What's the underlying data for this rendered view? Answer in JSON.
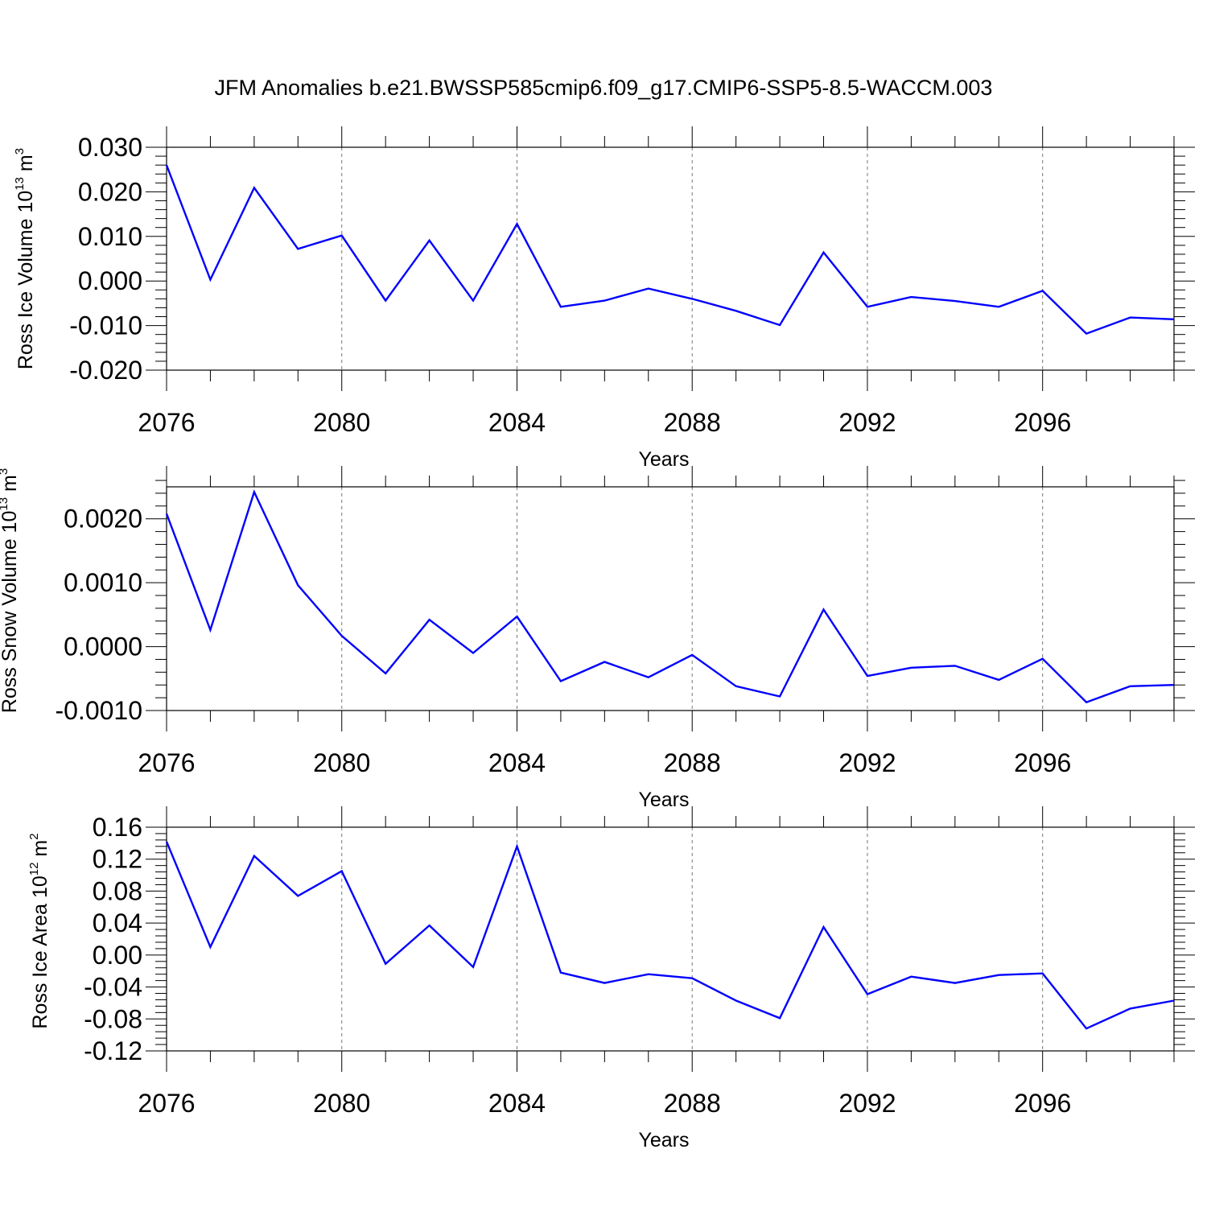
{
  "title": "JFM Anomalies b.e21.BWSSP585cmip6.f09_g17.CMIP6-SSP5-8.5-WACCM.003",
  "line_color": "#0000ff",
  "chart_data": [
    {
      "type": "line",
      "ylabel": {
        "main": "Ross Ice Volume 10",
        "exp": "13",
        "unit": " m",
        "unit_exp": "3"
      },
      "xlabel": "Years",
      "x": [
        2076,
        2077,
        2078,
        2079,
        2080,
        2081,
        2082,
        2083,
        2084,
        2085,
        2086,
        2087,
        2088,
        2089,
        2090,
        2091,
        2092,
        2093,
        2094,
        2095,
        2096,
        2097,
        2098,
        2099
      ],
      "values": [
        0.026,
        0.0003,
        0.0209,
        0.0072,
        0.0102,
        -0.0044,
        0.0091,
        -0.0044,
        0.0128,
        -0.0058,
        -0.0044,
        -0.0017,
        -0.004,
        -0.0067,
        -0.0099,
        0.0064,
        -0.0058,
        -0.0036,
        -0.0045,
        -0.0058,
        -0.0022,
        -0.0118,
        -0.0082,
        -0.0086
      ],
      "xlim": [
        2076,
        2099
      ],
      "ylim": [
        -0.02,
        0.03
      ],
      "yticks": [
        "0.030",
        "0.020",
        "0.010",
        "0.000",
        "-0.010",
        "-0.020"
      ],
      "ytick_values": [
        0.03,
        0.02,
        0.01,
        0.0,
        -0.01,
        -0.02
      ],
      "xticks": [
        "2076",
        "2080",
        "2084",
        "2088",
        "2092",
        "2096"
      ],
      "xtick_values": [
        2076,
        2080,
        2084,
        2088,
        2092,
        2096
      ]
    },
    {
      "type": "line",
      "ylabel": {
        "main": "Ross Snow Volume 10",
        "exp": "13",
        "unit": " m",
        "unit_exp": "3"
      },
      "xlabel": "Years",
      "x": [
        2076,
        2077,
        2078,
        2079,
        2080,
        2081,
        2082,
        2083,
        2084,
        2085,
        2086,
        2087,
        2088,
        2089,
        2090,
        2091,
        2092,
        2093,
        2094,
        2095,
        2096,
        2097,
        2098,
        2099
      ],
      "values": [
        0.00208,
        0.00026,
        0.00242,
        0.00096,
        0.00017,
        -0.00042,
        0.00042,
        -0.0001,
        0.00047,
        -0.00054,
        -0.00024,
        -0.00048,
        -0.00013,
        -0.00062,
        -0.00078,
        0.00058,
        -0.00046,
        -0.00033,
        -0.0003,
        -0.00052,
        -0.00019,
        -0.00087,
        -0.00062,
        -0.0006
      ],
      "xlim": [
        2076,
        2099
      ],
      "ylim": [
        -0.001,
        0.0025
      ],
      "yticks": [
        "0.0020",
        "0.0010",
        "0.0000",
        "-0.0010"
      ],
      "ytick_values": [
        0.002,
        0.001,
        0.0,
        -0.001
      ],
      "xticks": [
        "2076",
        "2080",
        "2084",
        "2088",
        "2092",
        "2096"
      ],
      "xtick_values": [
        2076,
        2080,
        2084,
        2088,
        2092,
        2096
      ]
    },
    {
      "type": "line",
      "ylabel": {
        "main": "Ross Ice Area 10",
        "exp": "12",
        "unit": " m",
        "unit_exp": "2"
      },
      "xlabel": "Years",
      "x": [
        2076,
        2077,
        2078,
        2079,
        2080,
        2081,
        2082,
        2083,
        2084,
        2085,
        2086,
        2087,
        2088,
        2089,
        2090,
        2091,
        2092,
        2093,
        2094,
        2095,
        2096,
        2097,
        2098,
        2099
      ],
      "values": [
        0.142,
        0.01,
        0.124,
        0.074,
        0.105,
        -0.011,
        0.037,
        -0.015,
        0.136,
        -0.022,
        -0.035,
        -0.024,
        -0.029,
        -0.057,
        -0.079,
        0.035,
        -0.049,
        -0.027,
        -0.035,
        -0.025,
        -0.023,
        -0.092,
        -0.067,
        -0.057
      ],
      "xlim": [
        2076,
        2099
      ],
      "ylim": [
        -0.12,
        0.16
      ],
      "yticks": [
        "0.16",
        "0.12",
        "0.08",
        "0.04",
        "0.00",
        "-0.04",
        "-0.08",
        "-0.12"
      ],
      "ytick_values": [
        0.16,
        0.12,
        0.08,
        0.04,
        0.0,
        -0.04,
        -0.08,
        -0.12
      ],
      "xticks": [
        "2076",
        "2080",
        "2084",
        "2088",
        "2092",
        "2096"
      ],
      "xtick_values": [
        2076,
        2080,
        2084,
        2088,
        2092,
        2096
      ]
    }
  ]
}
